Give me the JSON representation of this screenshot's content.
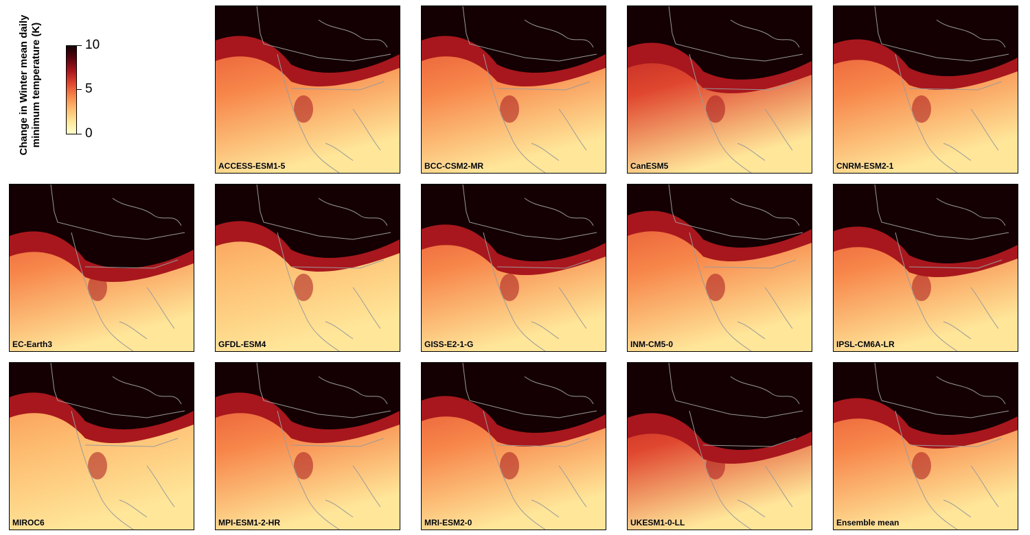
{
  "legend": {
    "title_line1": "Change in Winter mean daily",
    "title_line2": "minimum temperature (K)",
    "ticks": [
      "10",
      "5",
      "0"
    ],
    "range": [
      0,
      10
    ],
    "colors": [
      "#ffffcc",
      "#ffe699",
      "#fdbb6f",
      "#f7864a",
      "#e0472f",
      "#a8171d",
      "#5a0510",
      "#140002"
    ]
  },
  "panels": [
    {
      "label": "ACCESS-ESM1-5"
    },
    {
      "label": "BCC-CSM2-MR"
    },
    {
      "label": "CanESM5"
    },
    {
      "label": "CNRM-ESM2-1"
    },
    {
      "label": "EC-Earth3"
    },
    {
      "label": "GFDL-ESM4"
    },
    {
      "label": "GISS-E2-1-G"
    },
    {
      "label": "INM-CM5-0"
    },
    {
      "label": "IPSL-CM6A-LR"
    },
    {
      "label": "MIROC6"
    },
    {
      "label": "MPI-ESM1-2-HR"
    },
    {
      "label": "MRI-ESM2-0"
    },
    {
      "label": "UKESM1-0-LL"
    },
    {
      "label": "Ensemble mean"
    }
  ]
}
